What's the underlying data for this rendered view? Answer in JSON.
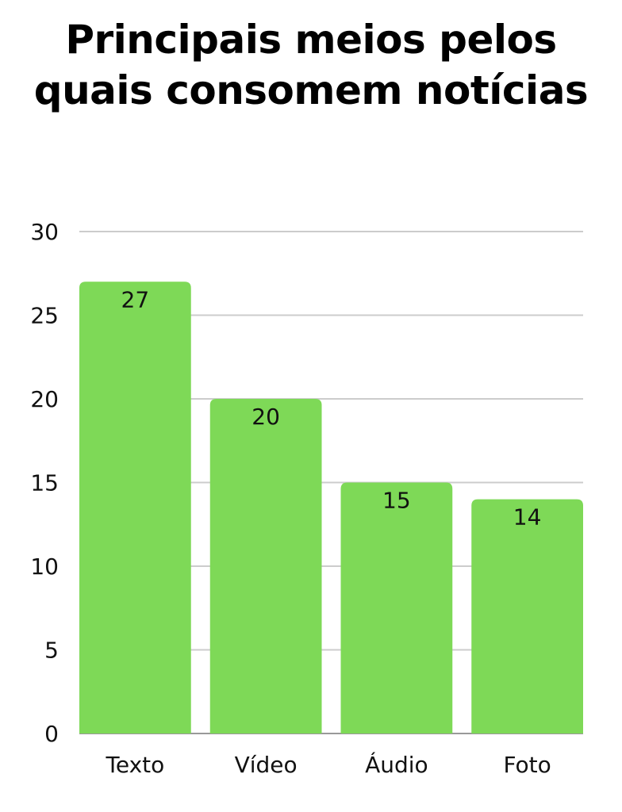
{
  "chart_data": {
    "type": "bar",
    "title_lines": [
      "Principais meios pelos",
      "quais consomem notícias"
    ],
    "categories": [
      "Texto",
      "Vídeo",
      "Áudio",
      "Foto"
    ],
    "values": [
      27,
      20,
      15,
      14
    ],
    "ylim": [
      0,
      30
    ],
    "yticks": [
      0,
      5,
      10,
      15,
      20,
      25,
      30
    ],
    "grid": true,
    "bar_color": "#7ED957",
    "grid_color": "#CCCCCC",
    "data_labels": true
  }
}
